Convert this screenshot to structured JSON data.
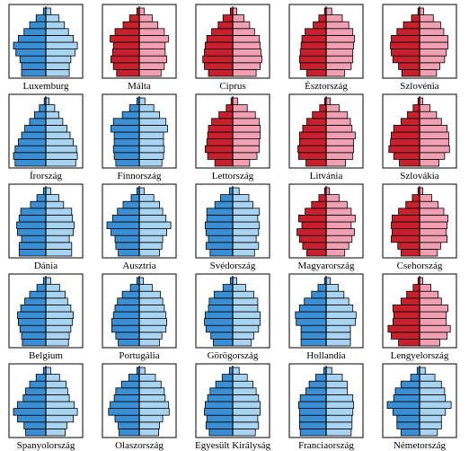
{
  "chart_data": [
    {
      "type": "pyramid",
      "title": "Luxemburg",
      "series": [
        {
          "color": "#3a8fd4",
          "values": [
            3.0,
            3.0,
            3.2,
            3.7,
            4.0,
            3.4,
            2.7,
            2.0,
            1.2,
            0.3
          ]
        },
        {
          "color": "#a8d4f2",
          "values": [
            2.9,
            2.9,
            3.1,
            3.6,
            3.9,
            3.4,
            2.8,
            2.3,
            1.6,
            0.6
          ]
        }
      ]
    },
    {
      "type": "pyramid",
      "title": "Málta",
      "series": [
        {
          "color": "#c8202c",
          "values": [
            2.8,
            3.2,
            3.5,
            3.3,
            3.2,
            3.6,
            3.0,
            2.0,
            1.2,
            0.3
          ]
        },
        {
          "color": "#f0a0b2",
          "values": [
            2.7,
            3.1,
            3.4,
            3.2,
            3.2,
            3.6,
            3.1,
            2.3,
            1.6,
            0.6
          ]
        }
      ]
    },
    {
      "type": "pyramid",
      "title": "Ciprus",
      "series": [
        {
          "color": "#c8202c",
          "values": [
            3.0,
            3.5,
            3.7,
            3.5,
            3.4,
            3.2,
            2.6,
            1.8,
            1.2,
            0.3
          ]
        },
        {
          "color": "#f0a0b2",
          "values": [
            2.9,
            3.4,
            3.6,
            3.5,
            3.4,
            3.3,
            2.7,
            2.1,
            1.4,
            0.5
          ]
        }
      ]
    },
    {
      "type": "pyramid",
      "title": "Észtország",
      "series": [
        {
          "color": "#c8202c",
          "values": [
            2.4,
            3.2,
            3.3,
            3.2,
            3.1,
            3.0,
            2.6,
            1.6,
            0.9,
            0.2
          ]
        },
        {
          "color": "#f0a0b2",
          "values": [
            2.3,
            3.1,
            3.3,
            3.3,
            3.4,
            3.5,
            3.3,
            2.8,
            2.0,
            0.7
          ]
        }
      ]
    },
    {
      "type": "pyramid",
      "title": "Szlovénia",
      "series": [
        {
          "color": "#c8202c",
          "values": [
            2.2,
            2.6,
            3.3,
            3.5,
            3.6,
            3.5,
            2.8,
            2.0,
            1.0,
            0.2
          ]
        },
        {
          "color": "#f0a0b2",
          "values": [
            2.1,
            2.5,
            3.1,
            3.3,
            3.5,
            3.5,
            3.0,
            2.6,
            1.7,
            0.5
          ]
        }
      ]
    },
    {
      "type": "pyramid",
      "title": "Írország",
      "series": [
        {
          "color": "#3a8fd4",
          "values": [
            3.8,
            4.0,
            3.8,
            3.4,
            3.0,
            2.6,
            2.0,
            1.4,
            0.8,
            0.2
          ]
        },
        {
          "color": "#a8d4f2",
          "values": [
            3.7,
            3.9,
            3.8,
            3.4,
            3.0,
            2.6,
            2.1,
            1.6,
            1.1,
            0.4
          ]
        }
      ]
    },
    {
      "type": "pyramid",
      "title": "Finnország",
      "series": [
        {
          "color": "#3a8fd4",
          "values": [
            2.9,
            3.1,
            3.2,
            3.1,
            3.1,
            3.5,
            3.2,
            2.1,
            1.2,
            0.3
          ]
        },
        {
          "color": "#a8d4f2",
          "values": [
            2.8,
            3.0,
            3.1,
            3.0,
            3.0,
            3.5,
            3.3,
            2.5,
            1.8,
            0.7
          ]
        }
      ]
    },
    {
      "type": "pyramid",
      "title": "Lettország",
      "series": [
        {
          "color": "#c8202c",
          "values": [
            2.2,
            3.1,
            3.4,
            3.2,
            3.1,
            3.0,
            2.6,
            1.7,
            0.8,
            0.2
          ]
        },
        {
          "color": "#f0a0b2",
          "values": [
            2.1,
            3.0,
            3.3,
            3.3,
            3.4,
            3.4,
            3.3,
            2.8,
            1.8,
            0.6
          ]
        }
      ]
    },
    {
      "type": "pyramid",
      "title": "Litvánia",
      "series": [
        {
          "color": "#c8202c",
          "values": [
            2.5,
            3.4,
            3.5,
            3.3,
            3.3,
            2.9,
            2.4,
            1.7,
            0.8,
            0.2
          ]
        },
        {
          "color": "#f0a0b2",
          "values": [
            2.4,
            3.3,
            3.4,
            3.4,
            3.6,
            3.2,
            3.0,
            2.6,
            1.6,
            0.5
          ]
        }
      ]
    },
    {
      "type": "pyramid",
      "title": "Szlovákia",
      "series": [
        {
          "color": "#c8202c",
          "values": [
            2.5,
            3.2,
            3.8,
            3.6,
            3.5,
            3.2,
            2.3,
            1.5,
            0.8,
            0.2
          ]
        },
        {
          "color": "#f0a0b2",
          "values": [
            2.4,
            3.1,
            3.7,
            3.6,
            3.6,
            3.4,
            2.7,
            2.1,
            1.3,
            0.4
          ]
        }
      ]
    },
    {
      "type": "pyramid",
      "title": "Dánia",
      "series": [
        {
          "color": "#3a8fd4",
          "values": [
            3.3,
            3.3,
            3.0,
            3.5,
            3.6,
            3.3,
            3.1,
            1.9,
            1.1,
            0.3
          ]
        },
        {
          "color": "#a8d4f2",
          "values": [
            3.2,
            3.2,
            2.9,
            3.4,
            3.5,
            3.3,
            3.2,
            2.2,
            1.6,
            0.6
          ]
        }
      ]
    },
    {
      "type": "pyramid",
      "title": "Ausztria",
      "series": [
        {
          "color": "#3a8fd4",
          "values": [
            2.6,
            2.9,
            3.0,
            3.5,
            4.0,
            3.3,
            2.7,
            2.0,
            1.0,
            0.3
          ]
        },
        {
          "color": "#a8d4f2",
          "values": [
            2.5,
            2.8,
            2.9,
            3.4,
            3.9,
            3.3,
            2.9,
            2.5,
            1.8,
            0.6
          ]
        }
      ]
    },
    {
      "type": "pyramid",
      "title": "Svédország",
      "series": [
        {
          "color": "#3a8fd4",
          "values": [
            2.8,
            3.3,
            3.0,
            3.3,
            3.4,
            3.2,
            3.2,
            2.2,
            1.5,
            0.4
          ]
        },
        {
          "color": "#a8d4f2",
          "values": [
            2.7,
            3.2,
            2.9,
            3.2,
            3.3,
            3.1,
            3.3,
            2.5,
            2.0,
            0.8
          ]
        }
      ]
    },
    {
      "type": "pyramid",
      "title": "Magyarország",
      "series": [
        {
          "color": "#c8202c",
          "values": [
            2.4,
            2.9,
            3.3,
            3.6,
            3.0,
            3.4,
            2.6,
            1.8,
            0.9,
            0.2
          ]
        },
        {
          "color": "#f0a0b2",
          "values": [
            2.3,
            2.8,
            3.2,
            3.5,
            3.1,
            3.6,
            3.1,
            2.6,
            1.6,
            0.4
          ]
        }
      ]
    },
    {
      "type": "pyramid",
      "title": "Csehország",
      "series": [
        {
          "color": "#c8202c",
          "values": [
            2.3,
            2.7,
            3.5,
            3.4,
            3.5,
            3.4,
            2.6,
            1.7,
            0.9,
            0.2
          ]
        },
        {
          "color": "#f0a0b2",
          "values": [
            2.2,
            2.6,
            3.4,
            3.3,
            3.4,
            3.5,
            3.0,
            2.3,
            1.5,
            0.4
          ]
        }
      ]
    },
    {
      "type": "pyramid",
      "title": "Belgium",
      "series": [
        {
          "color": "#3a8fd4",
          "values": [
            2.9,
            3.0,
            3.2,
            3.4,
            3.5,
            3.1,
            2.6,
            2.0,
            1.1,
            0.3
          ]
        },
        {
          "color": "#a8d4f2",
          "values": [
            2.8,
            2.9,
            3.1,
            3.3,
            3.4,
            3.1,
            2.7,
            2.4,
            1.7,
            0.6
          ]
        }
      ]
    },
    {
      "type": "pyramid",
      "title": "Portugália",
      "series": [
        {
          "color": "#3a8fd4",
          "values": [
            2.6,
            2.9,
            3.4,
            3.4,
            3.2,
            3.0,
            2.7,
            2.1,
            1.1,
            0.3
          ]
        },
        {
          "color": "#a8d4f2",
          "values": [
            2.5,
            2.8,
            3.3,
            3.4,
            3.3,
            3.1,
            2.9,
            2.6,
            1.6,
            0.5
          ]
        }
      ]
    },
    {
      "type": "pyramid",
      "title": "Görögország",
      "series": [
        {
          "color": "#3a8fd4",
          "values": [
            2.4,
            2.7,
            3.3,
            3.5,
            3.4,
            3.0,
            2.9,
            2.3,
            1.2,
            0.3
          ]
        },
        {
          "color": "#a8d4f2",
          "values": [
            2.3,
            2.6,
            3.2,
            3.4,
            3.4,
            3.1,
            3.1,
            2.6,
            1.6,
            0.5
          ]
        }
      ]
    },
    {
      "type": "pyramid",
      "title": "Hollandia",
      "series": [
        {
          "color": "#3a8fd4",
          "values": [
            3.1,
            3.1,
            3.1,
            3.7,
            3.8,
            3.3,
            2.7,
            1.8,
            1.0,
            0.2
          ]
        },
        {
          "color": "#a8d4f2",
          "values": [
            3.0,
            3.0,
            3.0,
            3.6,
            3.7,
            3.3,
            2.8,
            2.2,
            1.5,
            0.5
          ]
        }
      ]
    },
    {
      "type": "pyramid",
      "title": "Lengyelország",
      "series": [
        {
          "color": "#c8202c",
          "values": [
            2.6,
            3.5,
            3.9,
            3.3,
            3.2,
            3.3,
            2.3,
            1.6,
            0.8,
            0.2
          ]
        },
        {
          "color": "#f0a0b2",
          "values": [
            2.5,
            3.4,
            3.8,
            3.3,
            3.3,
            3.5,
            2.7,
            2.3,
            1.4,
            0.4
          ]
        }
      ]
    },
    {
      "type": "pyramid",
      "title": "Spanyolország",
      "series": [
        {
          "color": "#3a8fd4",
          "values": [
            2.5,
            2.7,
            3.5,
            4.0,
            3.5,
            2.8,
            2.5,
            2.0,
            1.2,
            0.3
          ]
        },
        {
          "color": "#a8d4f2",
          "values": [
            2.4,
            2.6,
            3.4,
            3.9,
            3.5,
            2.9,
            2.7,
            2.5,
            1.7,
            0.6
          ]
        }
      ]
    },
    {
      "type": "pyramid",
      "title": "Olaszország",
      "series": [
        {
          "color": "#3a8fd4",
          "values": [
            2.5,
            2.6,
            3.0,
            3.8,
            3.6,
            3.1,
            2.9,
            2.2,
            1.3,
            0.3
          ]
        },
        {
          "color": "#a8d4f2",
          "values": [
            2.4,
            2.5,
            2.9,
            3.7,
            3.6,
            3.2,
            3.1,
            2.7,
            2.0,
            0.7
          ]
        }
      ]
    },
    {
      "type": "pyramid",
      "title": "Egyesült Királyság",
      "series": [
        {
          "color": "#3a8fd4",
          "values": [
            2.9,
            3.3,
            3.2,
            3.5,
            3.4,
            3.1,
            2.8,
            2.1,
            1.3,
            0.4
          ]
        },
        {
          "color": "#a8d4f2",
          "values": [
            2.8,
            3.2,
            3.1,
            3.4,
            3.4,
            3.2,
            2.9,
            2.5,
            1.8,
            0.8
          ]
        }
      ]
    },
    {
      "type": "pyramid",
      "title": "Franciaország",
      "series": [
        {
          "color": "#3a8fd4",
          "values": [
            3.2,
            3.3,
            3.3,
            3.3,
            3.4,
            3.2,
            2.5,
            2.1,
            1.3,
            0.3
          ]
        },
        {
          "color": "#a8d4f2",
          "values": [
            3.1,
            3.2,
            3.2,
            3.3,
            3.4,
            3.3,
            2.6,
            2.6,
            2.0,
            0.7
          ]
        }
      ]
    },
    {
      "type": "pyramid",
      "title": "Németország",
      "series": [
        {
          "color": "#3a8fd4",
          "values": [
            2.3,
            2.8,
            2.8,
            3.3,
            4.0,
            3.2,
            3.0,
            2.3,
            1.1,
            0.3
          ]
        },
        {
          "color": "#a8d4f2",
          "values": [
            2.2,
            2.7,
            2.7,
            3.2,
            3.9,
            3.2,
            3.1,
            2.7,
            1.9,
            0.7
          ]
        }
      ]
    }
  ]
}
